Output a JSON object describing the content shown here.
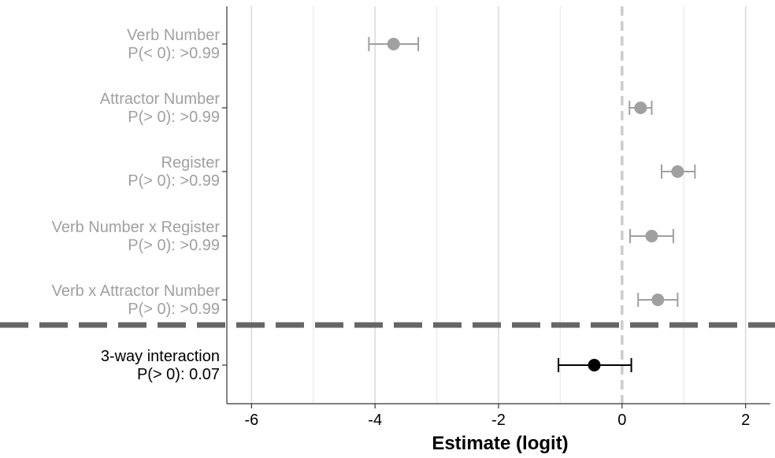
{
  "chart_data": {
    "type": "scatter",
    "subtype": "coefficient-plot",
    "title": "",
    "xlabel": "Estimate (logit)",
    "ylabel": "",
    "xlim": [
      -6.4,
      2.4
    ],
    "xticks": [
      -6,
      -4,
      -2,
      0,
      2
    ],
    "xtick_labels": [
      "-6",
      "-4",
      "-2",
      "0",
      "2"
    ],
    "minor_gridlines": [
      -5,
      -3,
      -1,
      1
    ],
    "grid": "vertical",
    "reference_line": 0,
    "rows": [
      {
        "label": "Verb Number",
        "prob": "P(< 0): >0.99",
        "estimate": -3.7,
        "lower": -4.1,
        "upper": -3.3,
        "highlight": false
      },
      {
        "label": "Attractor Number",
        "prob": "P(> 0): >0.99",
        "estimate": 0.3,
        "lower": 0.12,
        "upper": 0.48,
        "highlight": false
      },
      {
        "label": "Register",
        "prob": "P(> 0): >0.99",
        "estimate": 0.9,
        "lower": 0.64,
        "upper": 1.18,
        "highlight": false
      },
      {
        "label": "Verb Number x Register",
        "prob": "P(> 0): >0.99",
        "estimate": 0.48,
        "lower": 0.13,
        "upper": 0.83,
        "highlight": false
      },
      {
        "label": "Verb x Attractor Number",
        "prob": "P(> 0): >0.99",
        "estimate": 0.58,
        "lower": 0.26,
        "upper": 0.9,
        "highlight": false
      },
      {
        "label": "3-way interaction",
        "prob": "P(> 0): 0.07",
        "estimate": -0.45,
        "lower": -1.03,
        "upper": 0.15,
        "highlight": true
      }
    ],
    "colors": {
      "muted": "#a0a0a0",
      "highlight": "#000000",
      "separator": "#666666",
      "reference_line": "#cccccc",
      "grid_major": "#d9d9d9",
      "grid_minor": "#ececec",
      "axis": "#333333"
    }
  }
}
